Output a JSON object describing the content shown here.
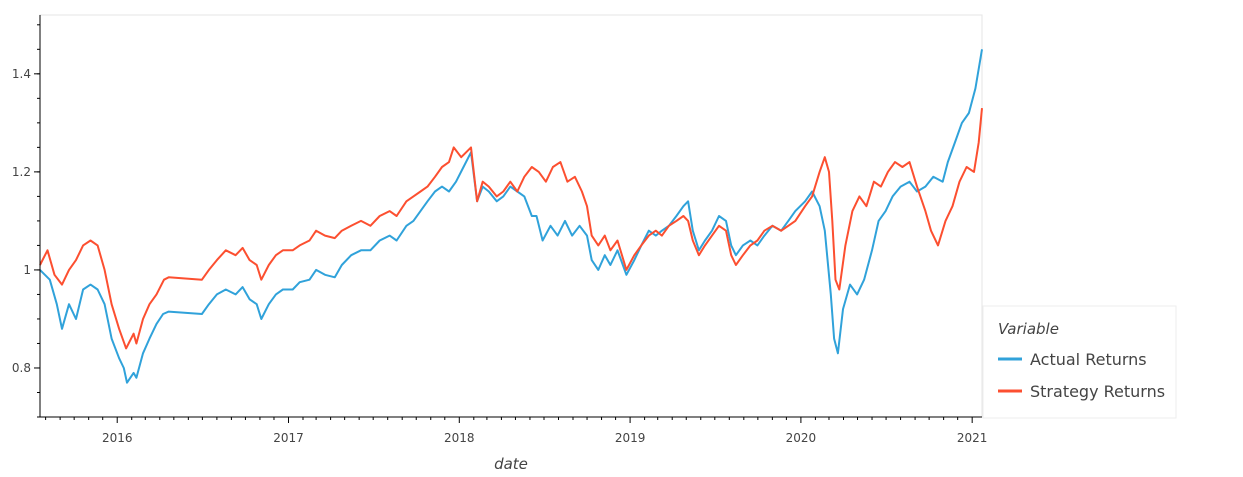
{
  "chart_data": {
    "type": "line",
    "xlabel": "date",
    "ylabel": "",
    "xlim": [
      "2015-07-20",
      "2021-01-22"
    ],
    "ylim": [
      0.7,
      1.52
    ],
    "x_ticks": [
      "2016",
      "2017",
      "2018",
      "2019",
      "2020",
      "2021"
    ],
    "y_ticks": [
      "0.8",
      "1",
      "1.2",
      "1.4"
    ],
    "grid": false,
    "legend_title": "Variable",
    "legend_position": "right",
    "series": [
      {
        "name": "Actual Returns",
        "color": "#30a2da",
        "points": [
          [
            "2015-07-20",
            1.0
          ],
          [
            "2015-08-10",
            0.98
          ],
          [
            "2015-08-25",
            0.93
          ],
          [
            "2015-09-05",
            0.88
          ],
          [
            "2015-09-20",
            0.93
          ],
          [
            "2015-10-05",
            0.9
          ],
          [
            "2015-10-20",
            0.96
          ],
          [
            "2015-11-05",
            0.97
          ],
          [
            "2015-11-20",
            0.96
          ],
          [
            "2015-12-05",
            0.93
          ],
          [
            "2015-12-20",
            0.86
          ],
          [
            "2016-01-05",
            0.82
          ],
          [
            "2016-01-15",
            0.8
          ],
          [
            "2016-01-22",
            0.77
          ],
          [
            "2016-02-05",
            0.79
          ],
          [
            "2016-02-11",
            0.78
          ],
          [
            "2016-02-25",
            0.83
          ],
          [
            "2016-03-10",
            0.86
          ],
          [
            "2016-03-25",
            0.89
          ],
          [
            "2016-04-08",
            0.91
          ],
          [
            "2016-04-20",
            0.915
          ],
          [
            "2016-06-30",
            0.91
          ],
          [
            "2016-07-15",
            0.93
          ],
          [
            "2016-08-01",
            0.95
          ],
          [
            "2016-08-20",
            0.96
          ],
          [
            "2016-09-10",
            0.95
          ],
          [
            "2016-09-25",
            0.965
          ],
          [
            "2016-10-10",
            0.94
          ],
          [
            "2016-10-25",
            0.93
          ],
          [
            "2016-11-04",
            0.9
          ],
          [
            "2016-11-20",
            0.93
          ],
          [
            "2016-12-05",
            0.95
          ],
          [
            "2016-12-20",
            0.96
          ],
          [
            "2017-01-10",
            0.96
          ],
          [
            "2017-01-25",
            0.975
          ],
          [
            "2017-02-15",
            0.98
          ],
          [
            "2017-03-01",
            1.0
          ],
          [
            "2017-03-20",
            0.99
          ],
          [
            "2017-04-10",
            0.985
          ],
          [
            "2017-04-25",
            1.01
          ],
          [
            "2017-05-15",
            1.03
          ],
          [
            "2017-06-05",
            1.04
          ],
          [
            "2017-06-25",
            1.04
          ],
          [
            "2017-07-15",
            1.06
          ],
          [
            "2017-08-05",
            1.07
          ],
          [
            "2017-08-20",
            1.06
          ],
          [
            "2017-09-10",
            1.09
          ],
          [
            "2017-09-25",
            1.1
          ],
          [
            "2017-10-10",
            1.12
          ],
          [
            "2017-10-25",
            1.14
          ],
          [
            "2017-11-10",
            1.16
          ],
          [
            "2017-11-25",
            1.17
          ],
          [
            "2017-12-10",
            1.16
          ],
          [
            "2017-12-25",
            1.18
          ],
          [
            "2018-01-10",
            1.21
          ],
          [
            "2018-01-26",
            1.24
          ],
          [
            "2018-02-08",
            1.14
          ],
          [
            "2018-02-20",
            1.17
          ],
          [
            "2018-03-05",
            1.16
          ],
          [
            "2018-03-22",
            1.14
          ],
          [
            "2018-04-05",
            1.15
          ],
          [
            "2018-04-20",
            1.17
          ],
          [
            "2018-05-05",
            1.16
          ],
          [
            "2018-05-20",
            1.15
          ],
          [
            "2018-06-05",
            1.11
          ],
          [
            "2018-06-15",
            1.11
          ],
          [
            "2018-06-28",
            1.06
          ],
          [
            "2018-07-15",
            1.09
          ],
          [
            "2018-07-30",
            1.07
          ],
          [
            "2018-08-15",
            1.1
          ],
          [
            "2018-08-30",
            1.07
          ],
          [
            "2018-09-15",
            1.09
          ],
          [
            "2018-10-01",
            1.07
          ],
          [
            "2018-10-11",
            1.02
          ],
          [
            "2018-10-25",
            1.0
          ],
          [
            "2018-11-08",
            1.03
          ],
          [
            "2018-11-20",
            1.01
          ],
          [
            "2018-12-05",
            1.04
          ],
          [
            "2018-12-24",
            0.99
          ],
          [
            "2019-01-10",
            1.02
          ],
          [
            "2019-01-25",
            1.05
          ],
          [
            "2019-02-10",
            1.08
          ],
          [
            "2019-02-25",
            1.07
          ],
          [
            "2019-03-10",
            1.08
          ],
          [
            "2019-03-25",
            1.09
          ],
          [
            "2019-04-10",
            1.11
          ],
          [
            "2019-04-25",
            1.13
          ],
          [
            "2019-05-05",
            1.14
          ],
          [
            "2019-05-15",
            1.08
          ],
          [
            "2019-05-28",
            1.04
          ],
          [
            "2019-06-10",
            1.06
          ],
          [
            "2019-06-25",
            1.08
          ],
          [
            "2019-07-10",
            1.11
          ],
          [
            "2019-07-25",
            1.1
          ],
          [
            "2019-08-05",
            1.05
          ],
          [
            "2019-08-15",
            1.03
          ],
          [
            "2019-08-30",
            1.05
          ],
          [
            "2019-09-15",
            1.06
          ],
          [
            "2019-09-30",
            1.05
          ],
          [
            "2019-10-15",
            1.07
          ],
          [
            "2019-11-01",
            1.09
          ],
          [
            "2019-11-20",
            1.08
          ],
          [
            "2019-12-05",
            1.1
          ],
          [
            "2019-12-20",
            1.12
          ],
          [
            "2020-01-10",
            1.14
          ],
          [
            "2020-01-25",
            1.16
          ],
          [
            "2020-02-10",
            1.13
          ],
          [
            "2020-02-21",
            1.08
          ],
          [
            "2020-03-05",
            0.95
          ],
          [
            "2020-03-12",
            0.86
          ],
          [
            "2020-03-20",
            0.83
          ],
          [
            "2020-03-31",
            0.92
          ],
          [
            "2020-04-15",
            0.97
          ],
          [
            "2020-04-30",
            0.95
          ],
          [
            "2020-05-15",
            0.98
          ],
          [
            "2020-06-01",
            1.04
          ],
          [
            "2020-06-15",
            1.1
          ],
          [
            "2020-06-30",
            1.12
          ],
          [
            "2020-07-15",
            1.15
          ],
          [
            "2020-08-01",
            1.17
          ],
          [
            "2020-08-20",
            1.18
          ],
          [
            "2020-09-05",
            1.16
          ],
          [
            "2020-09-23",
            1.17
          ],
          [
            "2020-10-10",
            1.19
          ],
          [
            "2020-10-30",
            1.18
          ],
          [
            "2020-11-10",
            1.22
          ],
          [
            "2020-11-25",
            1.26
          ],
          [
            "2020-12-10",
            1.3
          ],
          [
            "2020-12-25",
            1.32
          ],
          [
            "2021-01-08",
            1.37
          ],
          [
            "2021-01-22",
            1.45
          ]
        ]
      },
      {
        "name": "Strategy Returns",
        "color": "#fc4f30",
        "points": [
          [
            "2015-07-20",
            1.01
          ],
          [
            "2015-08-05",
            1.04
          ],
          [
            "2015-08-20",
            0.99
          ],
          [
            "2015-09-05",
            0.97
          ],
          [
            "2015-09-20",
            1.0
          ],
          [
            "2015-10-05",
            1.02
          ],
          [
            "2015-10-20",
            1.05
          ],
          [
            "2015-11-05",
            1.06
          ],
          [
            "2015-11-20",
            1.05
          ],
          [
            "2015-12-05",
            1.0
          ],
          [
            "2015-12-20",
            0.93
          ],
          [
            "2016-01-05",
            0.88
          ],
          [
            "2016-01-20",
            0.84
          ],
          [
            "2016-02-05",
            0.87
          ],
          [
            "2016-02-11",
            0.85
          ],
          [
            "2016-02-25",
            0.9
          ],
          [
            "2016-03-10",
            0.93
          ],
          [
            "2016-03-25",
            0.95
          ],
          [
            "2016-04-10",
            0.98
          ],
          [
            "2016-04-20",
            0.985
          ],
          [
            "2016-06-30",
            0.98
          ],
          [
            "2016-07-15",
            1.0
          ],
          [
            "2016-08-01",
            1.02
          ],
          [
            "2016-08-20",
            1.04
          ],
          [
            "2016-09-10",
            1.03
          ],
          [
            "2016-09-25",
            1.045
          ],
          [
            "2016-10-10",
            1.02
          ],
          [
            "2016-10-25",
            1.01
          ],
          [
            "2016-11-04",
            0.98
          ],
          [
            "2016-11-20",
            1.01
          ],
          [
            "2016-12-05",
            1.03
          ],
          [
            "2016-12-20",
            1.04
          ],
          [
            "2017-01-10",
            1.04
          ],
          [
            "2017-01-25",
            1.05
          ],
          [
            "2017-02-15",
            1.06
          ],
          [
            "2017-03-01",
            1.08
          ],
          [
            "2017-03-20",
            1.07
          ],
          [
            "2017-04-10",
            1.065
          ],
          [
            "2017-04-25",
            1.08
          ],
          [
            "2017-05-15",
            1.09
          ],
          [
            "2017-06-05",
            1.1
          ],
          [
            "2017-06-25",
            1.09
          ],
          [
            "2017-07-15",
            1.11
          ],
          [
            "2017-08-05",
            1.12
          ],
          [
            "2017-08-20",
            1.11
          ],
          [
            "2017-09-10",
            1.14
          ],
          [
            "2017-09-25",
            1.15
          ],
          [
            "2017-10-10",
            1.16
          ],
          [
            "2017-10-25",
            1.17
          ],
          [
            "2017-11-10",
            1.19
          ],
          [
            "2017-11-25",
            1.21
          ],
          [
            "2017-12-10",
            1.22
          ],
          [
            "2017-12-20",
            1.25
          ],
          [
            "2018-01-05",
            1.23
          ],
          [
            "2018-01-26",
            1.25
          ],
          [
            "2018-02-08",
            1.14
          ],
          [
            "2018-02-20",
            1.18
          ],
          [
            "2018-03-05",
            1.17
          ],
          [
            "2018-03-22",
            1.15
          ],
          [
            "2018-04-05",
            1.16
          ],
          [
            "2018-04-20",
            1.18
          ],
          [
            "2018-05-05",
            1.16
          ],
          [
            "2018-05-20",
            1.19
          ],
          [
            "2018-06-05",
            1.21
          ],
          [
            "2018-06-20",
            1.2
          ],
          [
            "2018-07-05",
            1.18
          ],
          [
            "2018-07-20",
            1.21
          ],
          [
            "2018-08-05",
            1.22
          ],
          [
            "2018-08-20",
            1.18
          ],
          [
            "2018-09-05",
            1.19
          ],
          [
            "2018-09-20",
            1.16
          ],
          [
            "2018-10-01",
            1.13
          ],
          [
            "2018-10-11",
            1.07
          ],
          [
            "2018-10-25",
            1.05
          ],
          [
            "2018-11-08",
            1.07
          ],
          [
            "2018-11-20",
            1.04
          ],
          [
            "2018-12-05",
            1.06
          ],
          [
            "2018-12-24",
            1.0
          ],
          [
            "2019-01-10",
            1.03
          ],
          [
            "2019-01-25",
            1.05
          ],
          [
            "2019-02-10",
            1.07
          ],
          [
            "2019-02-25",
            1.08
          ],
          [
            "2019-03-10",
            1.07
          ],
          [
            "2019-03-25",
            1.09
          ],
          [
            "2019-04-10",
            1.1
          ],
          [
            "2019-04-25",
            1.11
          ],
          [
            "2019-05-05",
            1.1
          ],
          [
            "2019-05-15",
            1.06
          ],
          [
            "2019-05-28",
            1.03
          ],
          [
            "2019-06-10",
            1.05
          ],
          [
            "2019-06-25",
            1.07
          ],
          [
            "2019-07-10",
            1.09
          ],
          [
            "2019-07-25",
            1.08
          ],
          [
            "2019-08-05",
            1.03
          ],
          [
            "2019-08-15",
            1.01
          ],
          [
            "2019-08-30",
            1.03
          ],
          [
            "2019-09-15",
            1.05
          ],
          [
            "2019-09-30",
            1.06
          ],
          [
            "2019-10-15",
            1.08
          ],
          [
            "2019-11-01",
            1.09
          ],
          [
            "2019-11-20",
            1.08
          ],
          [
            "2019-12-05",
            1.09
          ],
          [
            "2019-12-20",
            1.1
          ],
          [
            "2020-01-10",
            1.13
          ],
          [
            "2020-01-25",
            1.15
          ],
          [
            "2020-02-10",
            1.2
          ],
          [
            "2020-02-21",
            1.23
          ],
          [
            "2020-03-01",
            1.2
          ],
          [
            "2020-03-08",
            1.1
          ],
          [
            "2020-03-15",
            0.98
          ],
          [
            "2020-03-23",
            0.96
          ],
          [
            "2020-04-05",
            1.05
          ],
          [
            "2020-04-20",
            1.12
          ],
          [
            "2020-05-05",
            1.15
          ],
          [
            "2020-05-20",
            1.13
          ],
          [
            "2020-06-05",
            1.18
          ],
          [
            "2020-06-20",
            1.17
          ],
          [
            "2020-07-05",
            1.2
          ],
          [
            "2020-07-20",
            1.22
          ],
          [
            "2020-08-05",
            1.21
          ],
          [
            "2020-08-20",
            1.22
          ],
          [
            "2020-09-05",
            1.17
          ],
          [
            "2020-09-23",
            1.12
          ],
          [
            "2020-10-05",
            1.08
          ],
          [
            "2020-10-20",
            1.05
          ],
          [
            "2020-11-05",
            1.1
          ],
          [
            "2020-11-20",
            1.13
          ],
          [
            "2020-12-05",
            1.18
          ],
          [
            "2020-12-20",
            1.21
          ],
          [
            "2021-01-05",
            1.2
          ],
          [
            "2021-01-15",
            1.26
          ],
          [
            "2021-01-22",
            1.33
          ]
        ]
      }
    ]
  }
}
